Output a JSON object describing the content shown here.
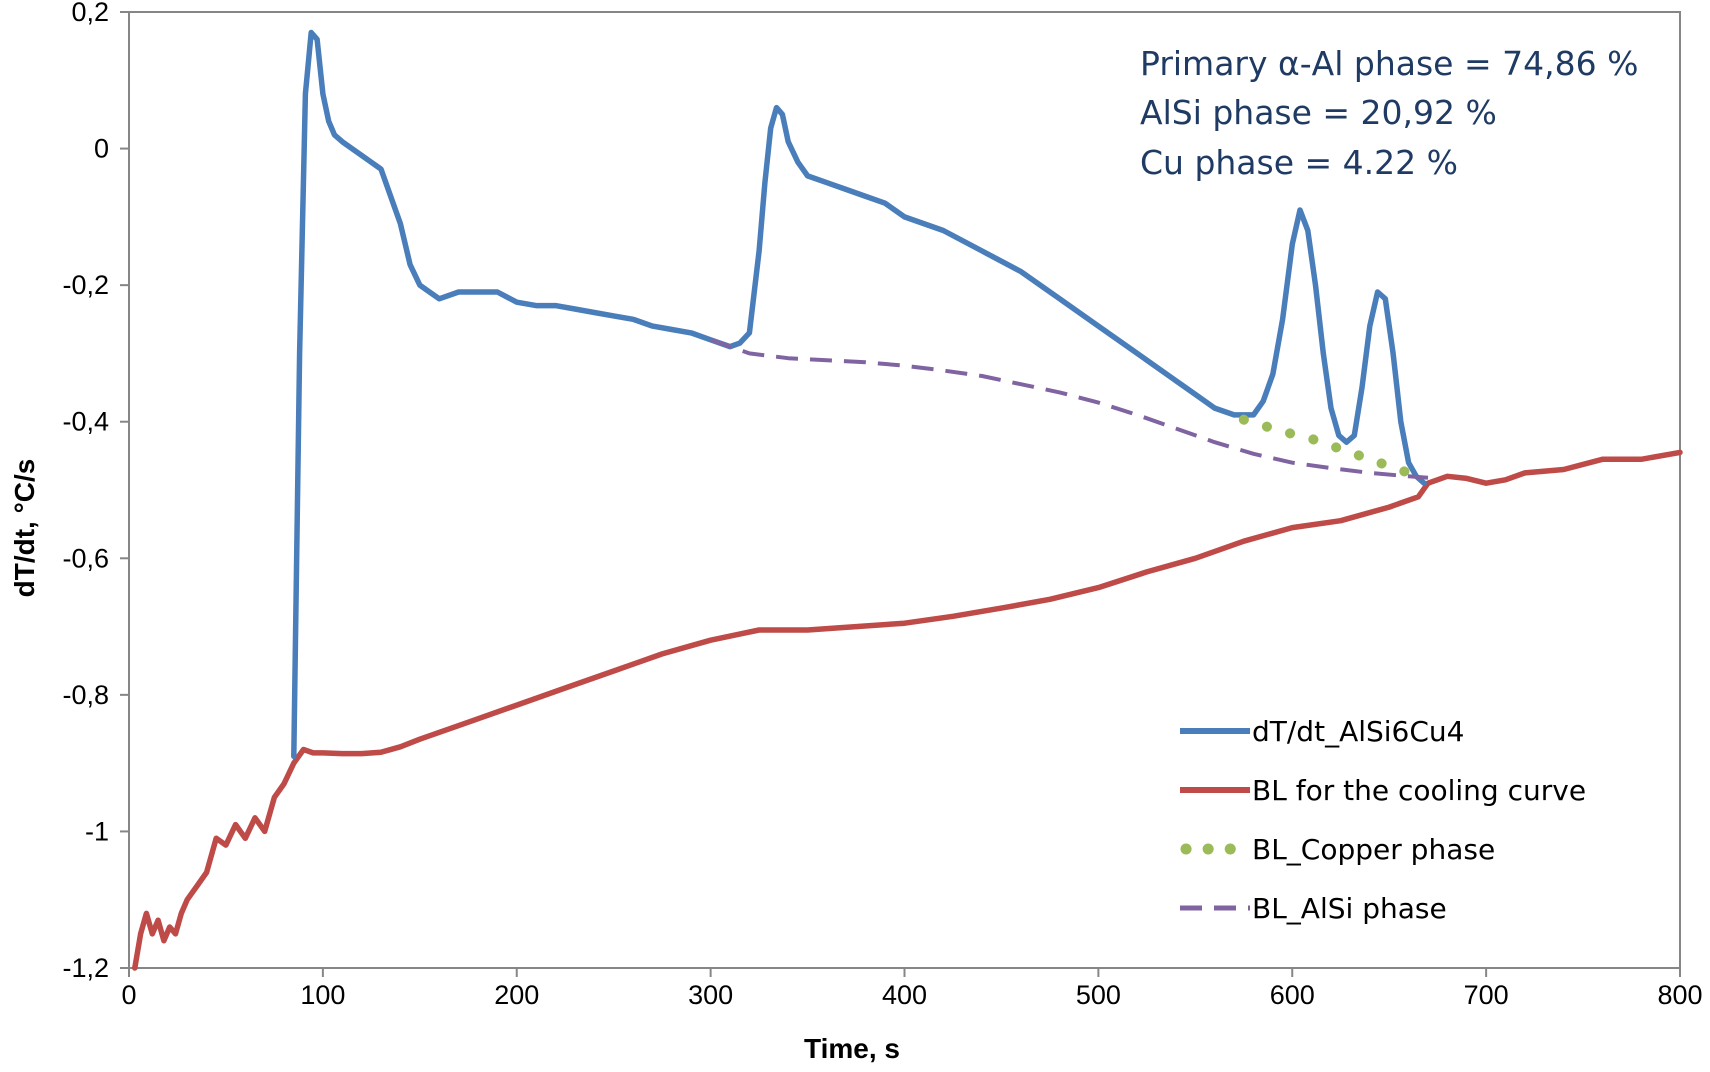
{
  "chart_data": {
    "type": "line",
    "xlabel": "Time, s",
    "ylabel": "dT/dt, °C/s",
    "xlim": [
      0,
      800
    ],
    "ylim": [
      -1.2,
      0.2
    ],
    "xticks": [
      0,
      100,
      200,
      300,
      400,
      500,
      600,
      700,
      800
    ],
    "xtick_labels": [
      "0",
      "100",
      "200",
      "300",
      "400",
      "500",
      "600",
      "700",
      "800"
    ],
    "yticks": [
      0.2,
      0,
      -0.2,
      -0.4,
      -0.6,
      -0.8,
      -1,
      -1.2
    ],
    "ytick_labels": [
      "0,2",
      "0",
      "-0,2",
      "-0,4",
      "-0,6",
      "-0,8",
      "-1",
      "-1,2"
    ],
    "grid": false,
    "legend_position": "bottom-right",
    "annotations": [
      "Primary α-Al phase = 74,86 %",
      "AlSi phase = 20,92 %",
      "Cu phase = 4.22 %"
    ],
    "series": [
      {
        "name": "dT/dt_AlSi6Cu4",
        "color": "#4a7ebb",
        "style": "solid",
        "x": [
          85,
          88,
          91,
          94,
          97,
          100,
          103,
          106,
          110,
          115,
          120,
          125,
          130,
          135,
          140,
          145,
          150,
          155,
          160,
          170,
          180,
          190,
          200,
          210,
          220,
          230,
          240,
          250,
          260,
          270,
          280,
          290,
          300,
          310,
          315,
          320,
          325,
          328,
          331,
          334,
          337,
          340,
          345,
          350,
          360,
          370,
          380,
          390,
          400,
          420,
          440,
          460,
          480,
          500,
          520,
          540,
          550,
          560,
          570,
          580,
          585,
          590,
          595,
          600,
          604,
          608,
          612,
          616,
          620,
          624,
          628,
          632,
          636,
          640,
          644,
          648,
          652,
          656,
          660,
          664,
          668
        ],
        "y": [
          -0.89,
          -0.3,
          0.08,
          0.17,
          0.16,
          0.08,
          0.04,
          0.02,
          0.01,
          0.0,
          -0.01,
          -0.02,
          -0.03,
          -0.07,
          -0.11,
          -0.17,
          -0.2,
          -0.21,
          -0.22,
          -0.21,
          -0.21,
          -0.21,
          -0.225,
          -0.23,
          -0.23,
          -0.235,
          -0.24,
          -0.245,
          -0.25,
          -0.26,
          -0.265,
          -0.27,
          -0.28,
          -0.29,
          -0.285,
          -0.27,
          -0.15,
          -0.05,
          0.03,
          0.06,
          0.05,
          0.01,
          -0.02,
          -0.04,
          -0.05,
          -0.06,
          -0.07,
          -0.08,
          -0.1,
          -0.12,
          -0.15,
          -0.18,
          -0.22,
          -0.26,
          -0.3,
          -0.34,
          -0.36,
          -0.38,
          -0.39,
          -0.39,
          -0.37,
          -0.33,
          -0.25,
          -0.14,
          -0.09,
          -0.12,
          -0.2,
          -0.3,
          -0.38,
          -0.42,
          -0.43,
          -0.42,
          -0.35,
          -0.26,
          -0.21,
          -0.22,
          -0.3,
          -0.4,
          -0.46,
          -0.48,
          -0.49
        ]
      },
      {
        "name": "BL for the cooling curve",
        "color": "#be4b48",
        "style": "solid",
        "x": [
          3,
          6,
          9,
          12,
          15,
          18,
          21,
          24,
          27,
          30,
          35,
          40,
          45,
          50,
          55,
          60,
          65,
          70,
          75,
          80,
          85,
          90,
          95,
          100,
          110,
          120,
          130,
          140,
          150,
          175,
          200,
          225,
          250,
          275,
          300,
          325,
          350,
          375,
          400,
          425,
          450,
          475,
          500,
          525,
          550,
          575,
          600,
          625,
          650,
          665,
          670,
          680,
          690,
          700,
          710,
          720,
          740,
          760,
          780,
          800
        ],
        "y": [
          -1.2,
          -1.15,
          -1.12,
          -1.15,
          -1.13,
          -1.16,
          -1.14,
          -1.15,
          -1.12,
          -1.1,
          -1.08,
          -1.06,
          -1.01,
          -1.02,
          -0.99,
          -1.01,
          -0.98,
          -1.0,
          -0.95,
          -0.93,
          -0.9,
          -0.88,
          -0.885,
          -0.885,
          -0.886,
          -0.886,
          -0.884,
          -0.876,
          -0.865,
          -0.84,
          -0.815,
          -0.79,
          -0.765,
          -0.74,
          -0.72,
          -0.705,
          -0.705,
          -0.7,
          -0.695,
          -0.685,
          -0.673,
          -0.66,
          -0.643,
          -0.62,
          -0.6,
          -0.575,
          -0.555,
          -0.545,
          -0.525,
          -0.51,
          -0.49,
          -0.48,
          -0.483,
          -0.49,
          -0.485,
          -0.475,
          -0.47,
          -0.455,
          -0.455,
          -0.445
        ]
      },
      {
        "name": "BL_Copper phase",
        "color": "#9bbb59",
        "style": "dotted",
        "x": [
          575,
          590,
          600,
          610,
          620,
          630,
          640,
          650,
          660,
          665
        ],
        "y": [
          -0.397,
          -0.41,
          -0.418,
          -0.425,
          -0.435,
          -0.445,
          -0.455,
          -0.465,
          -0.475,
          -0.48
        ]
      },
      {
        "name": "BL_AlSi phase",
        "color": "#8064a2",
        "style": "dashed",
        "x": [
          300,
          320,
          340,
          360,
          380,
          400,
          420,
          440,
          460,
          480,
          500,
          520,
          540,
          560,
          580,
          600,
          620,
          640,
          660,
          670
        ],
        "y": [
          -0.28,
          -0.3,
          -0.307,
          -0.31,
          -0.313,
          -0.318,
          -0.325,
          -0.333,
          -0.345,
          -0.357,
          -0.372,
          -0.39,
          -0.41,
          -0.43,
          -0.447,
          -0.46,
          -0.468,
          -0.475,
          -0.48,
          -0.482
        ]
      }
    ]
  }
}
